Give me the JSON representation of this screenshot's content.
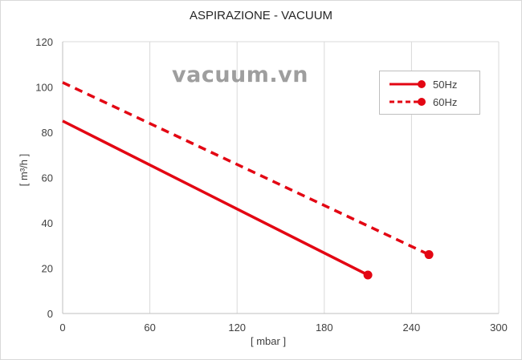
{
  "chart_data": {
    "type": "line",
    "title": "ASPIRAZIONE - VACUUM",
    "xlabel": "[ mbar ]",
    "ylabel": "[ m³/h ]",
    "xlim": [
      0,
      300
    ],
    "ylim": [
      0,
      120
    ],
    "x_ticks": [
      0,
      60,
      120,
      180,
      240,
      300
    ],
    "y_ticks": [
      0,
      20,
      40,
      60,
      80,
      100,
      120
    ],
    "grid": "vertical",
    "legend_position": "top-right",
    "series": [
      {
        "name": "50Hz",
        "style": "solid",
        "color": "#e30613",
        "x": [
          0,
          210
        ],
        "y": [
          85,
          17
        ]
      },
      {
        "name": "60Hz",
        "style": "dashed",
        "color": "#e30613",
        "x": [
          0,
          252
        ],
        "y": [
          102,
          26
        ]
      }
    ]
  },
  "watermark": "vacuum.vn"
}
